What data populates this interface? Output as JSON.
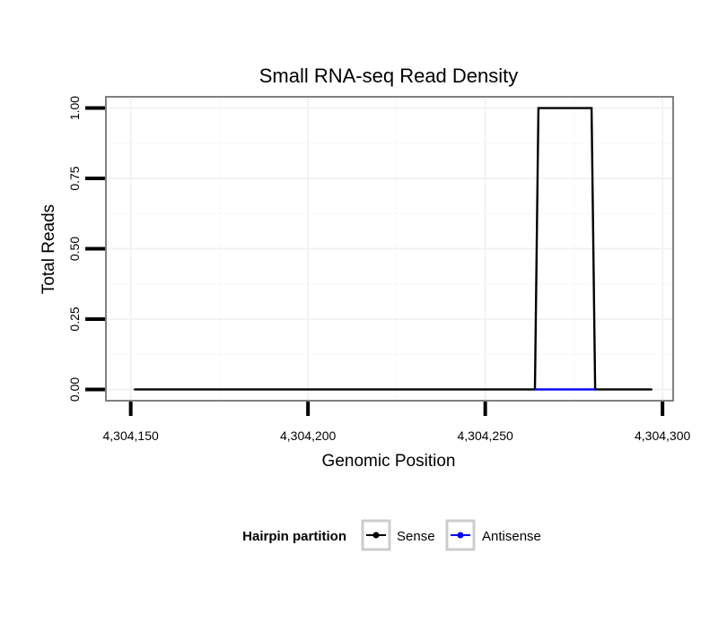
{
  "chart_data": {
    "type": "line",
    "title": "Small RNA-seq Read Density",
    "xlabel": "Genomic Position",
    "ylabel": "Total Reads",
    "xlim": [
      4304143,
      4304303
    ],
    "ylim": [
      -0.04,
      1.04
    ],
    "x_ticks": [
      4304150,
      4304200,
      4304250,
      4304300
    ],
    "x_tick_labels": [
      "4,304,150",
      "4,304,200",
      "4,304,250",
      "4,304,300"
    ],
    "y_ticks": [
      0,
      0.25,
      0.5,
      0.75,
      1.0
    ],
    "y_tick_labels": [
      "0.00",
      "0.25",
      "0.50",
      "0.75",
      "1.00"
    ],
    "grid": true,
    "legend": {
      "title": "Hairpin partition",
      "position": "bottom",
      "entries": [
        {
          "name": "Sense",
          "color": "#000000"
        },
        {
          "name": "Antisense",
          "color": "#0000ff"
        }
      ]
    },
    "series": [
      {
        "name": "Sense",
        "color": "#000000",
        "x": [
          4304151,
          4304264,
          4304265,
          4304280,
          4304281,
          4304297
        ],
        "y": [
          0,
          0,
          1,
          1,
          0,
          0
        ]
      },
      {
        "name": "Antisense",
        "color": "#0000ff",
        "x": [
          4304264,
          4304281
        ],
        "y": [
          0,
          0
        ]
      }
    ]
  }
}
